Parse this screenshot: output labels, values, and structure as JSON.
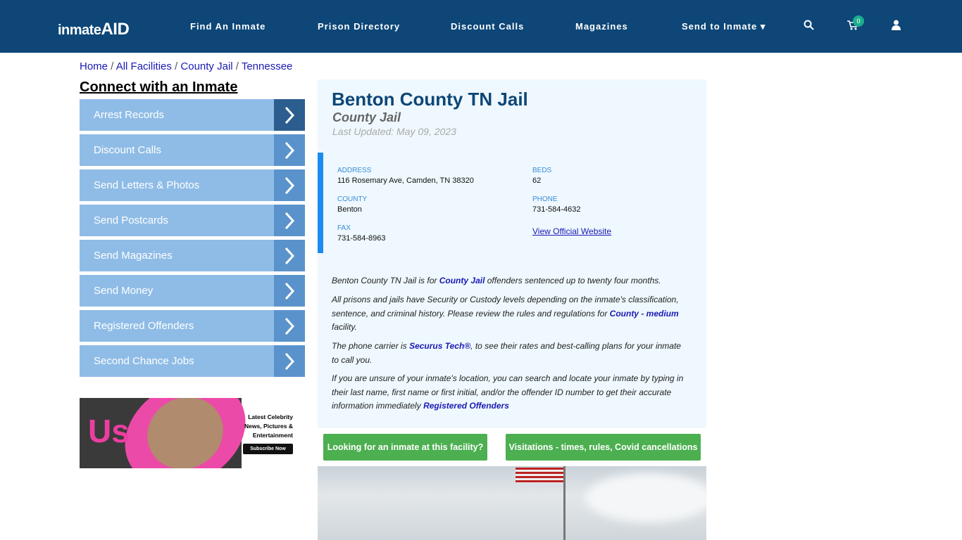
{
  "nav": {
    "logo": "inmateAID",
    "items": [
      "Find An Inmate",
      "Prison Directory",
      "Discount Calls",
      "Magazines",
      "Send to Inmate"
    ],
    "cart_count": "0"
  },
  "breadcrumb": [
    "Home",
    "All Facilities",
    "County Jail",
    "Tennessee"
  ],
  "sidebar": {
    "title": "Connect with an Inmate",
    "items": [
      "Arrest Records",
      "Discount Calls",
      "Send Letters & Photos",
      "Send Postcards",
      "Send Magazines",
      "Send Money",
      "Registered Offenders",
      "Second Chance Jobs"
    ]
  },
  "ad": {
    "brand": "Us",
    "headline": "Latest Celebrity News, Pictures & Entertainment",
    "cta": "Subscribe Now"
  },
  "facility": {
    "name": "Benton County TN Jail",
    "type": "County Jail",
    "updated": "Last Updated: May 09, 2023",
    "address_label": "ADDRESS",
    "address": "116 Rosemary Ave, Camden, TN 38320",
    "beds_label": "BEDS",
    "beds": "62",
    "county_label": "COUNTY",
    "county": "Benton",
    "phone_label": "PHONE",
    "phone": "731-584-4632",
    "fax_label": "FAX",
    "fax": "731-584-8963",
    "website": "View Official Website"
  },
  "desc": {
    "p1a": "Benton County TN Jail is for ",
    "p1link": "County Jail",
    "p1b": " offenders sentenced up to twenty four months.",
    "p2a": "All prisons and jails have Security or Custody levels depending on the inmate's classification, sentence, and criminal history. Please review the rules and regulations for ",
    "p2link": "County - medium",
    "p2b": " facility.",
    "p3a": "The phone carrier is ",
    "p3link": "Securus Tech®",
    "p3b": ", to see their rates and best-calling plans for your inmate to call you.",
    "p4a": "If you are unsure of your inmate's location, you can search and locate your inmate by typing in their last name, first name or first initial, and/or the offender ID number to get their accurate information immediately ",
    "p4link": "Registered Offenders"
  },
  "buttons": {
    "looking": "Looking for an inmate at this facility?",
    "visit": "Visitations - times, rules, Covid cancellations"
  }
}
